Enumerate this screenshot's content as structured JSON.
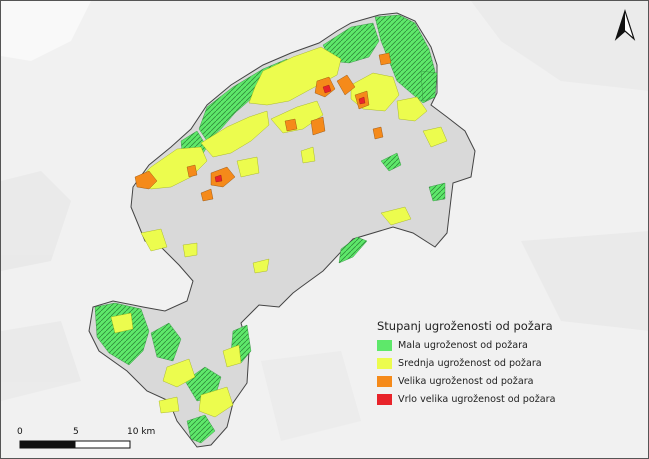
{
  "legend": {
    "title": "Stupanj ugroženosti od požara",
    "items": [
      {
        "label": "Mala ugroženost od požara",
        "color": "#5ee86a"
      },
      {
        "label": "Srednja ugroženost od požara",
        "color": "#ecfc4e"
      },
      {
        "label": "Velika ugroženost od požara",
        "color": "#f58a1a"
      },
      {
        "label": "Vrlo velika ugroženost od požara",
        "color": "#e8232a"
      }
    ]
  },
  "scalebar": {
    "ticks": [
      "0",
      "5",
      "10 km"
    ]
  },
  "icons": {
    "north_arrow": "north-arrow-icon"
  },
  "colors": {
    "region_fill": "#d9d9d9",
    "background": "#f1f1f1"
  }
}
